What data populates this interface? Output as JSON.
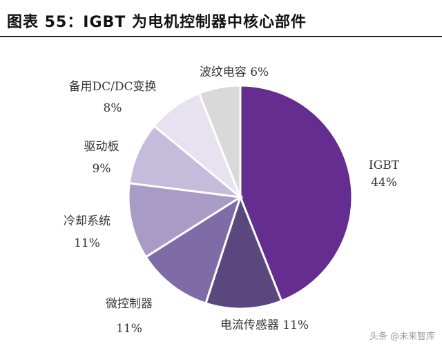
{
  "header": {
    "title": "图表 55：IGBT 为电机控制器中核心部件"
  },
  "watermark": "头条 @未来智库",
  "chart_data": {
    "type": "pie",
    "title": "图表 55：IGBT 为电机控制器中核心部件",
    "slices": [
      {
        "label": "IGBT",
        "value": 44,
        "value_text": "44%",
        "color": "#662d91"
      },
      {
        "label": "电流传感器",
        "value": 11,
        "value_text": "11%",
        "color": "#5a477e"
      },
      {
        "label": "微控制器",
        "value": 11,
        "value_text": "11%",
        "color": "#7f6ba6"
      },
      {
        "label": "冷却系统",
        "value": 11,
        "value_text": "11%",
        "color": "#a89cc6"
      },
      {
        "label": "驱动板",
        "value": 9,
        "value_text": "9%",
        "color": "#c4bcda"
      },
      {
        "label": "备用DC/DC变换",
        "value": 8,
        "value_text": "8%",
        "color": "#e6e2f0"
      },
      {
        "label": "波纹电容",
        "value": 6,
        "value_text": "6%",
        "color": "#d9d9d9"
      }
    ],
    "legend": "none"
  }
}
